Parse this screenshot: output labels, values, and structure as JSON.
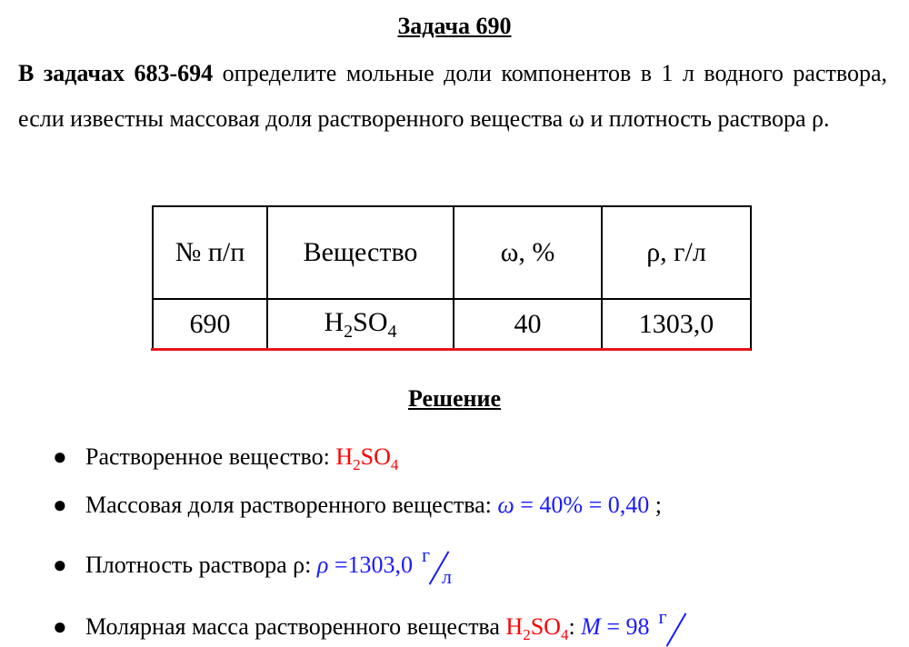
{
  "title": "Задача 690",
  "intro_bold": "В задачах 683-694",
  "intro_text": " определите мольные доли компонентов в 1 л водного раствора, если известны массовая доля растворенного вещества ω и плотность раствора ρ.",
  "table": {
    "headers": [
      "№ п/п",
      "Вещество",
      "ω, %",
      "ρ, г/л"
    ],
    "row": [
      "690",
      "H",
      "2",
      "SO",
      "4",
      "40",
      "1303,0"
    ]
  },
  "solution_title": "Решение",
  "items": [
    {
      "label": "Растворенное вещество: ",
      "v1": "H",
      "v2": "2",
      "v3": "SO",
      "v4": "4"
    },
    {
      "label": "Массовая доля растворенного вещества: ",
      "var": "ω",
      "expr": " = 40% = 0,40",
      "tail": " ;"
    },
    {
      "label": "Плотность раствора ρ: ",
      "var": "ρ",
      "expr": " =1303,0",
      "num": "г",
      "den": "л"
    },
    {
      "label": "Молярная масса растворенного вещества ",
      "f1": "H",
      "f2": "2",
      "f3": "SO",
      "f4": "4",
      "colon": ": ",
      "var": "M",
      "expr": " = 98",
      "num": "г"
    }
  ],
  "colors": {
    "formula_red": "#ff0000",
    "math_blue": "#1a1aff",
    "underline_red": "#e8141c"
  }
}
